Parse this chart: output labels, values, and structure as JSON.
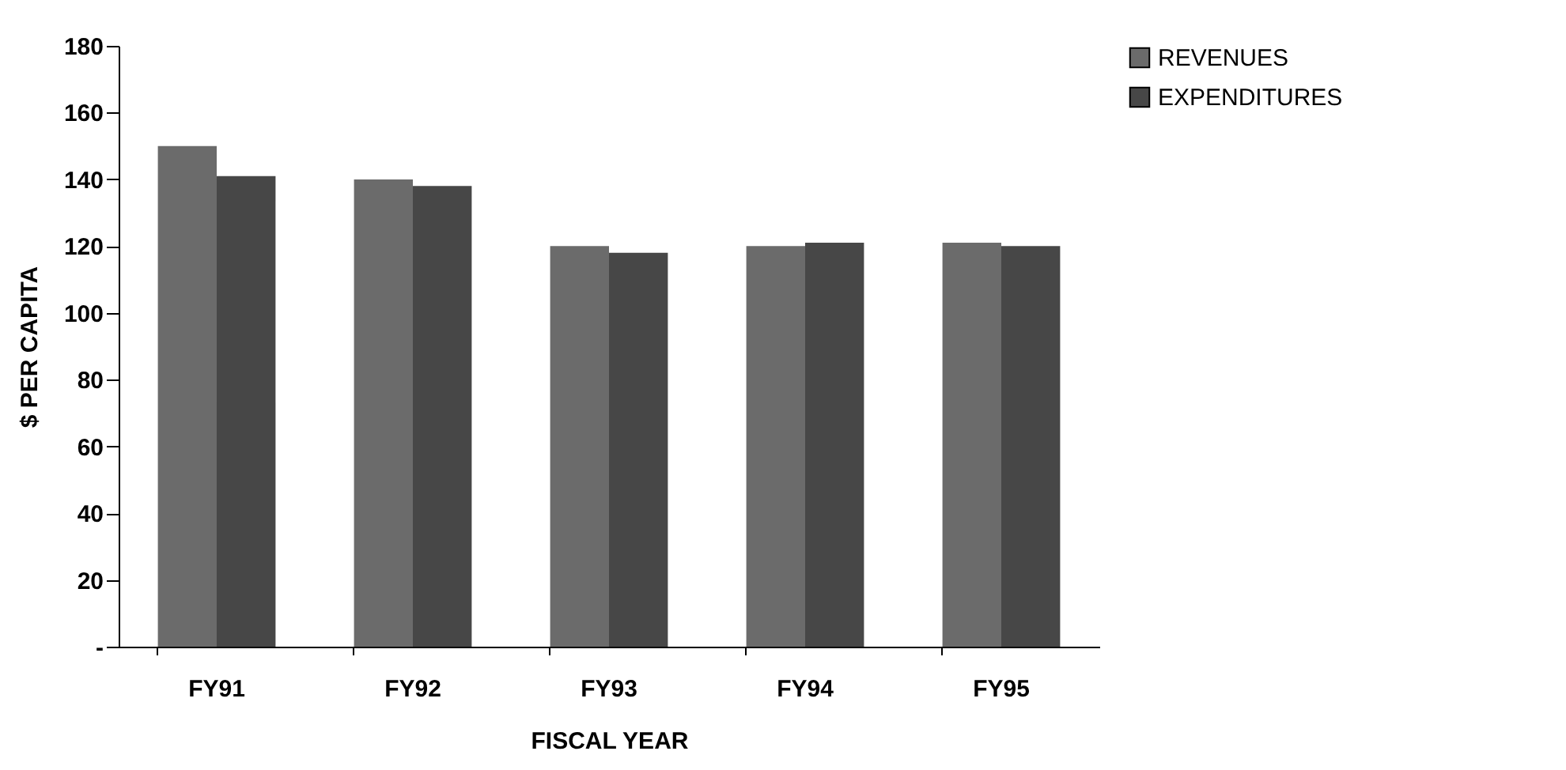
{
  "chart_data": {
    "type": "bar",
    "xlabel": "FISCAL YEAR",
    "ylabel": "$ PER CAPITA",
    "categories": [
      "FY91",
      "FY92",
      "FY93",
      "FY94",
      "FY95"
    ],
    "series": [
      {
        "name": "REVENUES",
        "color": "#6b6b6b",
        "values": [
          150,
          140,
          120,
          120,
          121
        ]
      },
      {
        "name": "EXPENDITURES",
        "color": "#474747",
        "values": [
          141,
          138,
          118,
          121,
          120
        ]
      }
    ],
    "ylim": [
      0,
      180
    ],
    "yticks": [
      {
        "value": 0,
        "label": "-"
      },
      20,
      40,
      60,
      80,
      100,
      120,
      140,
      160,
      180
    ],
    "grid": false,
    "legend": "right"
  }
}
